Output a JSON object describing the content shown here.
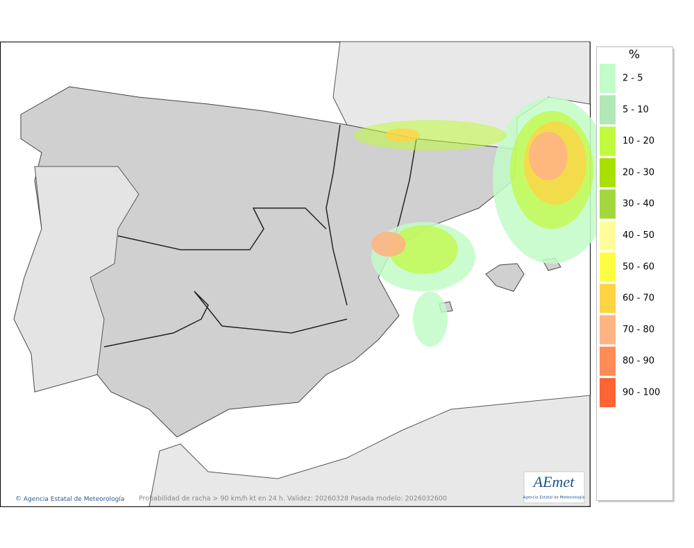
{
  "footer": {
    "copyright": "Agencia Estatal de Meteorología",
    "caption": "Probabilidad de racha > 90 km/h kt en 24 h. Validez: 20260328 Pasada modelo: 2026032600"
  },
  "logo": {
    "name": "AEmet",
    "subtitle": "Agencia Estatal de Meteorología"
  },
  "legend": {
    "title": "%",
    "items": [
      {
        "label": "2 - 5",
        "color": "#c2fcc8"
      },
      {
        "label": "5 - 10",
        "color": "#b0e8b6"
      },
      {
        "label": "10 - 20",
        "color": "#c0fa3c"
      },
      {
        "label": "20 - 30",
        "color": "#a8e000"
      },
      {
        "label": "30 - 40",
        "color": "#a2d83e"
      },
      {
        "label": "40 - 50",
        "color": "#fffc9c"
      },
      {
        "label": "50 - 60",
        "color": "#fffc44"
      },
      {
        "label": "60 - 70",
        "color": "#ffd444"
      },
      {
        "label": "70 - 80",
        "color": "#ffb484"
      },
      {
        "label": "80 - 90",
        "color": "#ff8c56"
      },
      {
        "label": "90 - 100",
        "color": "#ff6434"
      }
    ]
  }
}
